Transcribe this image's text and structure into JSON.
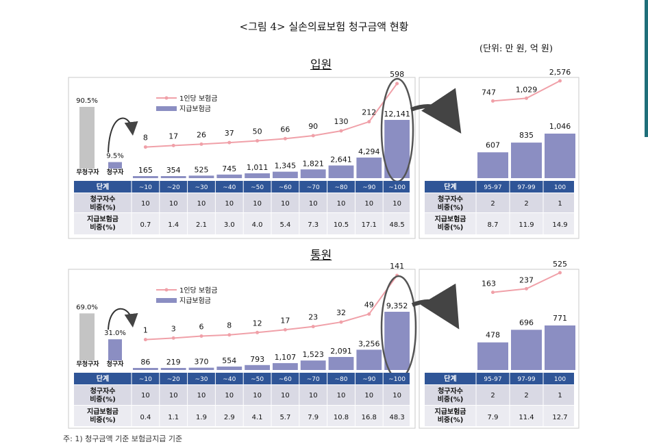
{
  "figure_title": "<그림 4> 실손의료보험 청구금액 현황",
  "unit_note": "(단위: 만 원, 억 원)",
  "footnote": "주: 1) 청구금액 기준 보험금지급 기준",
  "colors": {
    "bar": "#8b8ec2",
    "line": "#f0a0a8",
    "gray": "#c4c4c4",
    "header": "#2f5597",
    "row": "#d9d9e4"
  },
  "legend": {
    "line": "1인당 보험금",
    "bar": "지급보험금"
  },
  "table_labels": {
    "stage": "단계",
    "claimant": "청구자수 비중(%)",
    "paid": "지급보험금 비중(%)"
  },
  "chart_data": [
    {
      "section": "입원",
      "type": "bar+line",
      "non_claim": {
        "label": "무청구자",
        "percent": "90.5%",
        "value": 90.5
      },
      "claim": {
        "label": "청구자",
        "percent": "9.5%",
        "value": 9.5
      },
      "categories": [
        "~10",
        "~20",
        "~30",
        "~40",
        "~50",
        "~60",
        "~70",
        "~80",
        "~90",
        "~100"
      ],
      "bar_values": [
        165,
        354,
        525,
        745,
        1011,
        1345,
        1821,
        2641,
        4294,
        12141
      ],
      "bar_labels": [
        "165",
        "354",
        "525",
        "745",
        "1,011",
        "1,345",
        "1,821",
        "2,641",
        "4,294",
        "12,141"
      ],
      "line_values": [
        8,
        17,
        26,
        37,
        50,
        66,
        90,
        130,
        212,
        598
      ],
      "line_labels": [
        "8",
        "17",
        "26",
        "37",
        "50",
        "66",
        "90",
        "130",
        "212",
        "598"
      ],
      "claimant_share": [
        "10",
        "10",
        "10",
        "10",
        "10",
        "10",
        "10",
        "10",
        "10",
        "10"
      ],
      "paid_share": [
        "0.7",
        "1.4",
        "2.1",
        "3.0",
        "4.0",
        "5.4",
        "7.3",
        "10.5",
        "17.1",
        "48.5"
      ],
      "detail": {
        "categories": [
          "95-97",
          "97-99",
          "100"
        ],
        "bar_values": [
          607,
          835,
          1046
        ],
        "bar_labels": [
          "607",
          "835",
          "1,046"
        ],
        "line_values": [
          747,
          1029,
          2576
        ],
        "line_labels": [
          "747",
          "1,029",
          "2,576"
        ],
        "claimant_share": [
          "2",
          "2",
          "1"
        ],
        "paid_share": [
          "8.7",
          "11.9",
          "14.9"
        ]
      }
    },
    {
      "section": "통원",
      "type": "bar+line",
      "non_claim": {
        "label": "무청구자",
        "percent": "69.0%",
        "value": 69.0
      },
      "claim": {
        "label": "청구자",
        "percent": "31.0%",
        "value": 31.0
      },
      "categories": [
        "~10",
        "~20",
        "~30",
        "~40",
        "~50",
        "~60",
        "~70",
        "~80",
        "~90",
        "~100"
      ],
      "bar_values": [
        86,
        219,
        370,
        554,
        793,
        1107,
        1523,
        2091,
        3256,
        9352
      ],
      "bar_labels": [
        "86",
        "219",
        "370",
        "554",
        "793",
        "1,107",
        "1,523",
        "2,091",
        "3,256",
        "9,352"
      ],
      "line_values": [
        1,
        3,
        6,
        8,
        12,
        17,
        23,
        32,
        49,
        141
      ],
      "line_labels": [
        "1",
        "3",
        "6",
        "8",
        "12",
        "17",
        "23",
        "32",
        "49",
        "141"
      ],
      "claimant_share": [
        "10",
        "10",
        "10",
        "10",
        "10",
        "10",
        "10",
        "10",
        "10",
        "10"
      ],
      "paid_share": [
        "0.4",
        "1.1",
        "1.9",
        "2.9",
        "4.1",
        "5.7",
        "7.9",
        "10.8",
        "16.8",
        "48.3"
      ],
      "detail": {
        "categories": [
          "95-97",
          "97-99",
          "100"
        ],
        "bar_values": [
          478,
          696,
          771
        ],
        "bar_labels": [
          "478",
          "696",
          "771"
        ],
        "line_values": [
          163,
          237,
          525
        ],
        "line_labels": [
          "163",
          "237",
          "525"
        ],
        "claimant_share": [
          "2",
          "2",
          "1"
        ],
        "paid_share": [
          "7.9",
          "11.4",
          "12.7"
        ]
      }
    }
  ]
}
